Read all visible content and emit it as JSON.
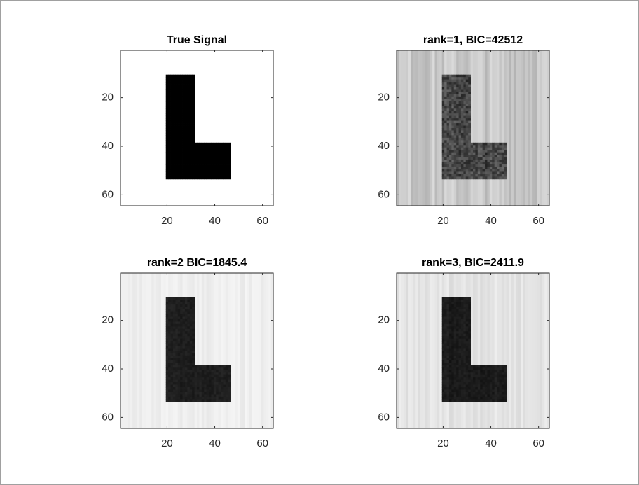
{
  "chart_data": [
    {
      "type": "image",
      "title": "True Signal",
      "xlim": [
        0.5,
        64.5
      ],
      "ylim": [
        0.5,
        64.5
      ],
      "xticks": [
        20,
        40,
        60
      ],
      "yticks": [
        20,
        40,
        60
      ]
    },
    {
      "type": "image",
      "title": "rank=1,  BIC=42512",
      "xlim": [
        0.5,
        64.5
      ],
      "ylim": [
        0.5,
        64.5
      ],
      "xticks": [
        20,
        40,
        60
      ],
      "yticks": [
        20,
        40,
        60
      ]
    },
    {
      "type": "image",
      "title": "rank=2  BIC=1845.4",
      "xlim": [
        0.5,
        64.5
      ],
      "ylim": [
        0.5,
        64.5
      ],
      "xticks": [
        20,
        40,
        60
      ],
      "yticks": [
        20,
        40,
        60
      ]
    },
    {
      "type": "image",
      "title": "rank=3,  BIC=2411.9",
      "xlim": [
        0.5,
        64.5
      ],
      "ylim": [
        0.5,
        64.5
      ],
      "xticks": [
        20,
        40,
        60
      ],
      "yticks": [
        20,
        40,
        60
      ]
    }
  ]
}
